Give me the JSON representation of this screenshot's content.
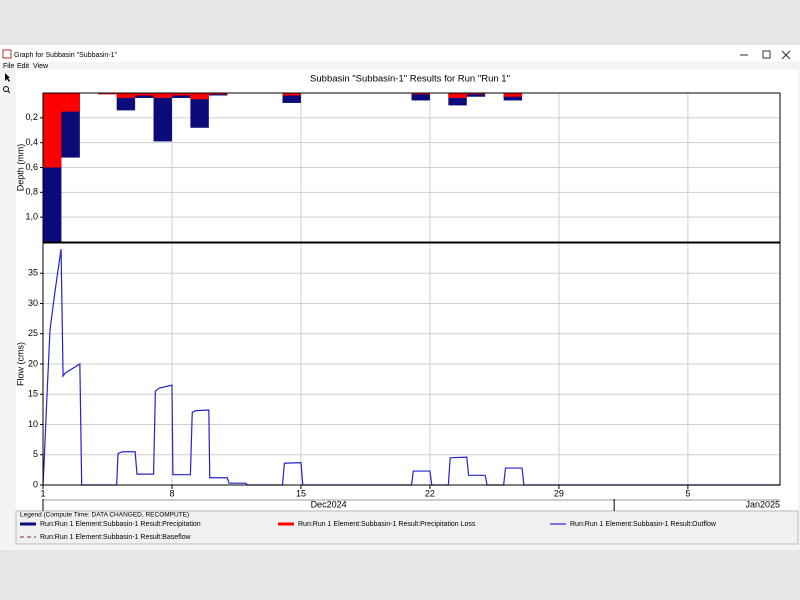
{
  "window_title": "Graph for Subbasin \"Subbasin-1\"",
  "menu": [
    "File",
    "Edit",
    "View"
  ],
  "legend_title": "Legend (Compute Time: DATA CHANGED, RECOMPUTE)",
  "chart_data": [
    {
      "type": "bar",
      "title": "Subbasin \"Subbasin-1\" Results for Run \"Run 1\"",
      "ylabel": "Depth (mm)",
      "x": [
        0,
        1,
        2,
        3,
        4,
        5,
        6,
        7,
        8,
        9,
        10,
        11,
        12,
        13,
        14,
        15,
        16,
        17,
        18,
        19,
        20,
        21,
        22,
        23,
        24,
        25,
        26,
        27,
        28,
        29,
        30,
        31,
        32,
        33,
        34,
        35,
        36,
        37,
        38,
        39
      ],
      "ylim": [
        0,
        1.2
      ],
      "inverted": true,
      "yticks": [
        {
          "value": 0.2,
          "label": "0,2"
        },
        {
          "value": 0.4,
          "label": "0,4"
        },
        {
          "value": 0.6,
          "label": "0,6"
        },
        {
          "value": 0.8,
          "label": "0,8"
        },
        {
          "value": 1.0,
          "label": "1,0"
        }
      ],
      "grid": true,
      "series": [
        {
          "name": "Run:Run 1 Element:Subbasin-1 Result:Precipitation",
          "color": "#0b0b7a",
          "values": [
            1.2,
            0.52,
            0,
            0.01,
            0.14,
            0.04,
            0.39,
            0.04,
            0.28,
            0.02,
            0,
            0,
            0,
            0.08,
            0,
            0,
            0,
            0,
            0,
            0,
            0.06,
            0,
            0.1,
            0.03,
            0,
            0.06,
            0,
            0,
            0,
            0,
            0,
            0,
            0,
            0,
            0,
            0,
            0,
            0,
            0,
            0
          ]
        },
        {
          "name": "Run:Run 1 Element:Subbasin-1 Result:Precipitation Loss",
          "color": "#ff0000",
          "values": [
            0.6,
            0.15,
            0,
            0.01,
            0.04,
            0.02,
            0.04,
            0.02,
            0.05,
            0.01,
            0,
            0,
            0,
            0.02,
            0,
            0,
            0,
            0,
            0,
            0,
            0.01,
            0,
            0.04,
            0.01,
            0,
            0.03,
            0,
            0,
            0,
            0,
            0,
            0,
            0,
            0,
            0,
            0,
            0,
            0,
            0,
            0
          ]
        }
      ]
    },
    {
      "type": "line",
      "ylabel": "Flow (cms)",
      "xlim": [
        0,
        40
      ],
      "xticks": [
        {
          "value": 0,
          "label": "1"
        },
        {
          "value": 7,
          "label": "8"
        },
        {
          "value": 14,
          "label": "15"
        },
        {
          "value": 21,
          "label": "22"
        },
        {
          "value": 28,
          "label": "29"
        },
        {
          "value": 35,
          "label": "5"
        }
      ],
      "xperiods": [
        {
          "value": 0,
          "label": "Dec2024"
        },
        {
          "value": 31,
          "label": "Jan2025"
        }
      ],
      "ylim": [
        0,
        40
      ],
      "yticks": [
        0,
        5,
        10,
        15,
        20,
        25,
        30,
        35
      ],
      "grid": true,
      "series": [
        {
          "name": "Run:Run 1 Element:Subbasin-1 Result:Outflow",
          "color": "#2424c8",
          "line_style": "solid",
          "x": [
            0,
            0.05,
            0.22,
            0.38,
            0.65,
            0.98,
            1.09,
            1.2,
            2.0,
            2.1,
            4.0,
            4.07,
            4.3,
            5.0,
            5.1,
            6.0,
            6.1,
            6.3,
            7.0,
            7.05,
            8.0,
            8.1,
            8.3,
            9.0,
            9.05,
            10.0,
            10.1,
            11.0,
            11.1,
            13.0,
            13.1,
            14.0,
            14.1,
            20.0,
            20.1,
            21.0,
            21.1,
            22.0,
            22.1,
            23.0,
            23.1,
            24.0,
            24.1,
            25.0,
            25.1,
            26.0,
            26.1,
            40
          ],
          "values": [
            0,
            3,
            15,
            25.6,
            32,
            39,
            18,
            18.5,
            20,
            0,
            0,
            5.2,
            5.5,
            5.5,
            1.8,
            1.8,
            15.5,
            16,
            16.5,
            1.7,
            1.7,
            12,
            12.3,
            12.4,
            1.2,
            1.2,
            0.3,
            0.3,
            0,
            0,
            3.6,
            3.7,
            0,
            0,
            2.3,
            2.3,
            0,
            0,
            4.5,
            4.6,
            1.6,
            1.6,
            0,
            0,
            2.8,
            2.8,
            0,
            0
          ]
        },
        {
          "name": "Run:Run 1 Element:Subbasin-1 Result:Baseflow",
          "color": "#a05050",
          "line_style": "dashed",
          "x": [
            0,
            40
          ],
          "values": [
            0,
            0
          ]
        }
      ]
    }
  ]
}
